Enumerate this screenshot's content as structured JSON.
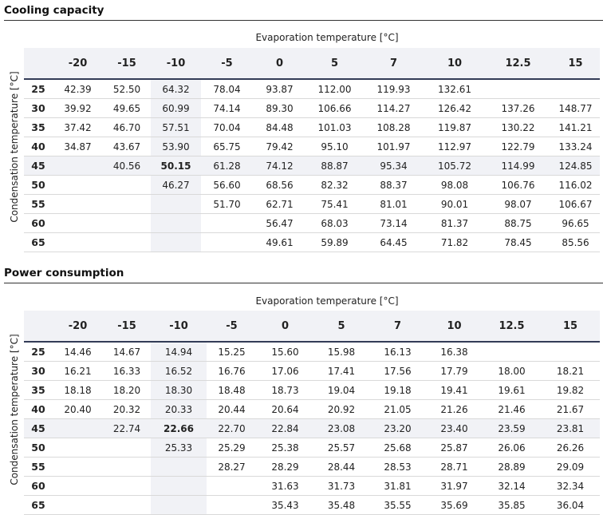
{
  "tables": [
    {
      "title": "Cooling capacity",
      "x_label": "Evaporation temperature [°C]",
      "y_label": "Condensation temperature [°C]",
      "columns": [
        "-20",
        "-15",
        "-10",
        "-5",
        "0",
        "5",
        "7",
        "10",
        "12.5",
        "15"
      ],
      "rows": [
        {
          "label": "25",
          "cells": [
            "42.39",
            "52.50",
            "64.32",
            "78.04",
            "93.87",
            "112.00",
            "119.93",
            "132.61",
            "",
            ""
          ]
        },
        {
          "label": "30",
          "cells": [
            "39.92",
            "49.65",
            "60.99",
            "74.14",
            "89.30",
            "106.66",
            "114.27",
            "126.42",
            "137.26",
            "148.77"
          ]
        },
        {
          "label": "35",
          "cells": [
            "37.42",
            "46.70",
            "57.51",
            "70.04",
            "84.48",
            "101.03",
            "108.28",
            "119.87",
            "130.22",
            "141.21"
          ]
        },
        {
          "label": "40",
          "cells": [
            "34.87",
            "43.67",
            "53.90",
            "65.75",
            "79.42",
            "95.10",
            "101.97",
            "112.97",
            "122.79",
            "133.24"
          ]
        },
        {
          "label": "45",
          "cells": [
            "",
            "40.56",
            "50.15",
            "61.28",
            "74.12",
            "88.87",
            "95.34",
            "105.72",
            "114.99",
            "124.85"
          ]
        },
        {
          "label": "50",
          "cells": [
            "",
            "",
            "46.27",
            "56.60",
            "68.56",
            "82.32",
            "88.37",
            "98.08",
            "106.76",
            "116.02"
          ]
        },
        {
          "label": "55",
          "cells": [
            "",
            "",
            "",
            "51.70",
            "62.71",
            "75.41",
            "81.01",
            "90.01",
            "98.07",
            "106.67"
          ]
        },
        {
          "label": "60",
          "cells": [
            "",
            "",
            "",
            "",
            "56.47",
            "68.03",
            "73.14",
            "81.37",
            "88.75",
            "96.65"
          ]
        },
        {
          "label": "65",
          "cells": [
            "",
            "",
            "",
            "",
            "49.61",
            "59.89",
            "64.45",
            "71.82",
            "78.45",
            "85.56"
          ]
        }
      ]
    },
    {
      "title": "Power consumption",
      "x_label": "Evaporation temperature [°C]",
      "y_label": "Condensation temperature [°C]",
      "columns": [
        "-20",
        "-15",
        "-10",
        "-5",
        "0",
        "5",
        "7",
        "10",
        "12.5",
        "15"
      ],
      "rows": [
        {
          "label": "25",
          "cells": [
            "14.46",
            "14.67",
            "14.94",
            "15.25",
            "15.60",
            "15.98",
            "16.13",
            "16.38",
            "",
            ""
          ]
        },
        {
          "label": "30",
          "cells": [
            "16.21",
            "16.33",
            "16.52",
            "16.76",
            "17.06",
            "17.41",
            "17.56",
            "17.79",
            "18.00",
            "18.21"
          ]
        },
        {
          "label": "35",
          "cells": [
            "18.18",
            "18.20",
            "18.30",
            "18.48",
            "18.73",
            "19.04",
            "19.18",
            "19.41",
            "19.61",
            "19.82"
          ]
        },
        {
          "label": "40",
          "cells": [
            "20.40",
            "20.32",
            "20.33",
            "20.44",
            "20.64",
            "20.92",
            "21.05",
            "21.26",
            "21.46",
            "21.67"
          ]
        },
        {
          "label": "45",
          "cells": [
            "",
            "22.74",
            "22.66",
            "22.70",
            "22.84",
            "23.08",
            "23.20",
            "23.40",
            "23.59",
            "23.81"
          ]
        },
        {
          "label": "50",
          "cells": [
            "",
            "",
            "25.33",
            "25.29",
            "25.38",
            "25.57",
            "25.68",
            "25.87",
            "26.06",
            "26.26"
          ]
        },
        {
          "label": "55",
          "cells": [
            "",
            "",
            "",
            "28.27",
            "28.29",
            "28.44",
            "28.53",
            "28.71",
            "28.89",
            "29.09"
          ]
        },
        {
          "label": "60",
          "cells": [
            "",
            "",
            "",
            "",
            "31.63",
            "31.73",
            "31.81",
            "31.97",
            "32.14",
            "32.34"
          ]
        },
        {
          "label": "65",
          "cells": [
            "",
            "",
            "",
            "",
            "35.43",
            "35.48",
            "35.55",
            "35.69",
            "35.85",
            "36.04"
          ]
        }
      ]
    }
  ],
  "highlight": {
    "row_index": 4,
    "col_index": 2,
    "color": "#f1f2f6"
  },
  "header_rule_color": "#333c57"
}
